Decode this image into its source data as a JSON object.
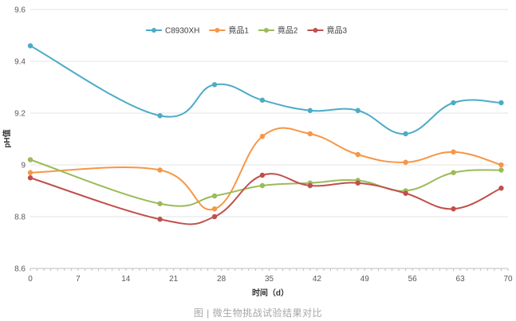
{
  "chart_data": {
    "type": "line",
    "smooth": true,
    "xlabel": "时间（d）",
    "ylabel": "pH值",
    "xlim": [
      0,
      70
    ],
    "ylim": [
      8.6,
      9.6
    ],
    "x_ticks": [
      0,
      7,
      14,
      21,
      28,
      35,
      42,
      49,
      56,
      63,
      70
    ],
    "x_tick_labels": [
      "0",
      "7",
      "14",
      "21",
      "28",
      "35",
      "42",
      "49",
      "56",
      "63",
      "70"
    ],
    "y_ticks": [
      8.6,
      8.8,
      9.0,
      9.2,
      9.4,
      9.6
    ],
    "y_tick_labels": [
      "8.6",
      "8.8",
      "9",
      "9.2",
      "9.4",
      "9.6"
    ],
    "grid": "horizontal",
    "legend_position": "top-center",
    "series": [
      {
        "name": "C8930XH",
        "color": "#4bacc6",
        "x": [
          0,
          19,
          27,
          34,
          41,
          48,
          55,
          62,
          69
        ],
        "y": [
          9.46,
          9.19,
          9.31,
          9.25,
          9.21,
          9.21,
          9.12,
          9.24,
          9.24
        ]
      },
      {
        "name": "竟品1",
        "color": "#f79646",
        "x": [
          0,
          19,
          27,
          34,
          41,
          48,
          55,
          62,
          69
        ],
        "y": [
          8.97,
          8.98,
          8.83,
          9.11,
          9.12,
          9.04,
          9.01,
          9.05,
          9.0
        ]
      },
      {
        "name": "竟品2",
        "color": "#9bbb59",
        "x": [
          0,
          19,
          27,
          34,
          41,
          48,
          55,
          62,
          69
        ],
        "y": [
          9.02,
          8.85,
          8.88,
          8.92,
          8.93,
          8.94,
          8.9,
          8.97,
          8.98
        ]
      },
      {
        "name": "竟品3",
        "color": "#c0504d",
        "x": [
          0,
          19,
          27,
          34,
          41,
          48,
          55,
          62,
          69
        ],
        "y": [
          8.95,
          8.79,
          8.8,
          8.96,
          8.92,
          8.93,
          8.89,
          8.83,
          8.91
        ]
      }
    ]
  },
  "caption": "图 | 微生物挑战试验结果对比"
}
